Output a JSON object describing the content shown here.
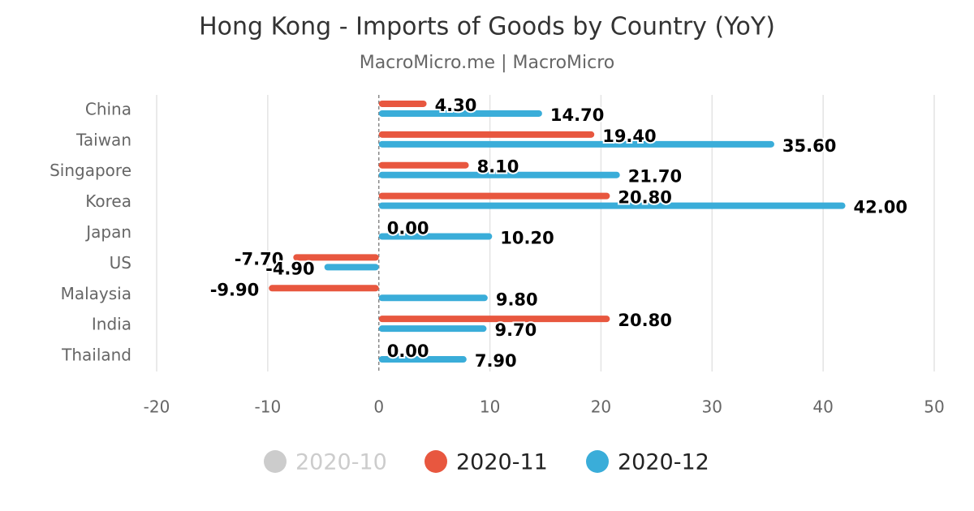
{
  "chart_data": {
    "type": "hbar",
    "title": "Hong Kong - Imports of Goods by Country (YoY)",
    "subtitle": "MacroMicro.me | MacroMicro",
    "categories": [
      "China",
      "Taiwan",
      "Singapore",
      "Korea",
      "Japan",
      "US",
      "Malaysia",
      "India",
      "Thailand"
    ],
    "series": [
      {
        "name": "2020-10",
        "color": "#cccccc",
        "visible": false,
        "values": [
          null,
          null,
          null,
          null,
          null,
          null,
          null,
          null,
          null
        ]
      },
      {
        "name": "2020-11",
        "color": "#e8573f",
        "visible": true,
        "values": [
          4.3,
          19.4,
          8.1,
          20.8,
          0,
          -7.7,
          -9.9,
          20.8,
          0
        ],
        "value_labels": [
          "4.30",
          "19.40",
          "8.10",
          "20.80",
          "0.00",
          "-7.70",
          "-9.90",
          "20.80",
          "0.00"
        ]
      },
      {
        "name": "2020-12",
        "color": "#3aadd9",
        "visible": true,
        "values": [
          14.7,
          35.6,
          21.7,
          42,
          10.2,
          -4.9,
          9.8,
          9.7,
          7.9
        ],
        "value_labels": [
          "14.70",
          "35.60",
          "21.70",
          "42.00",
          "10.20",
          "-4.90",
          "9.80",
          "9.70",
          "7.90"
        ]
      }
    ],
    "xlim": [
      -20,
      50
    ],
    "xticks": [
      -20,
      -10,
      0,
      10,
      20,
      30,
      40,
      50
    ],
    "grid": true
  }
}
